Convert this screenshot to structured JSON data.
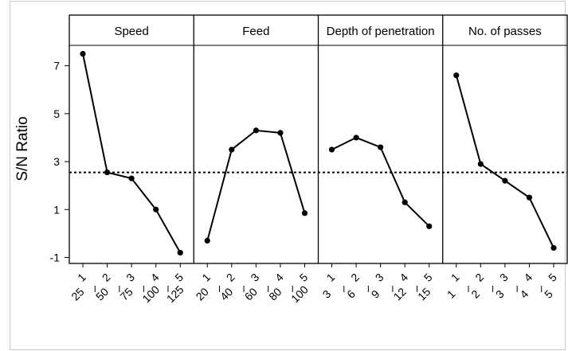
{
  "chart_data": {
    "type": "line",
    "ylabel": "S/N Ratio",
    "yticks": [
      -1,
      1,
      3,
      5,
      7
    ],
    "ylim": [
      -1.25,
      7.85
    ],
    "reference_line": 2.55,
    "grid": false,
    "panels": [
      {
        "title": "Speed",
        "levels": [
          "1",
          "2",
          "3",
          "4",
          "5"
        ],
        "values_actual": [
          "25",
          "50",
          "75",
          "100",
          "125"
        ],
        "sn": [
          7.5,
          2.55,
          2.3,
          1.0,
          -0.8
        ]
      },
      {
        "title": "Feed",
        "levels": [
          "1",
          "2",
          "3",
          "4",
          "5"
        ],
        "values_actual": [
          "20",
          "40",
          "60",
          "80",
          "100"
        ],
        "sn": [
          -0.3,
          3.5,
          4.3,
          4.2,
          0.85
        ]
      },
      {
        "title": "Depth of penetration",
        "levels": [
          "1",
          "2",
          "3",
          "4",
          "5"
        ],
        "values_actual": [
          "3",
          "6",
          "9",
          "12",
          "15"
        ],
        "sn": [
          3.5,
          4.0,
          3.6,
          1.3,
          0.3
        ]
      },
      {
        "title": "No. of passes",
        "levels": [
          "1",
          "2",
          "3",
          "4",
          "5"
        ],
        "values_actual": [
          "1",
          "2",
          "3",
          "4",
          "5"
        ],
        "sn": [
          6.6,
          2.9,
          2.2,
          1.5,
          -0.6
        ]
      }
    ]
  }
}
